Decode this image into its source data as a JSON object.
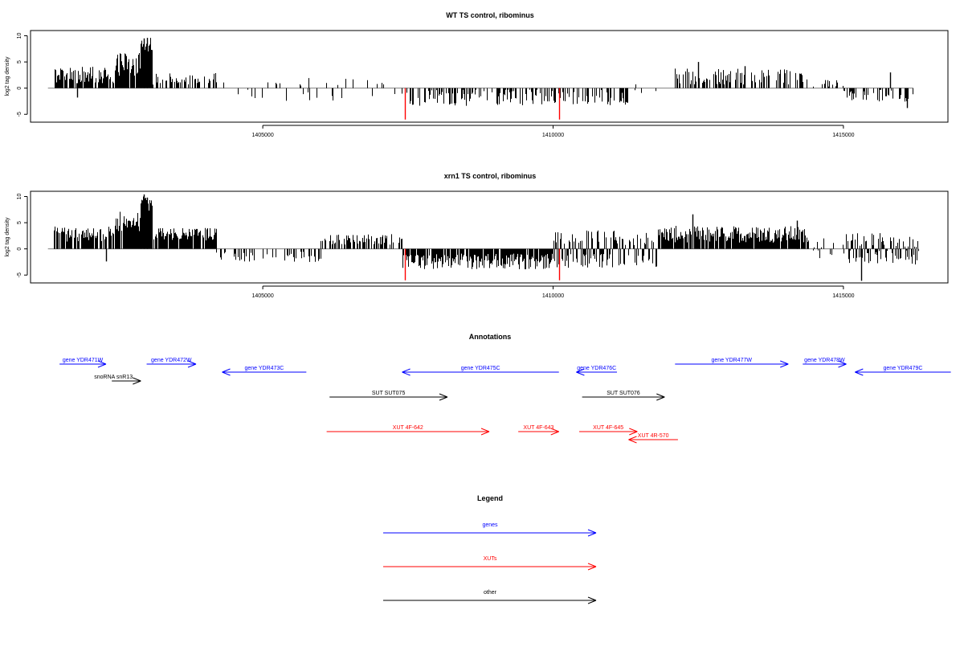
{
  "colors": {
    "gene": "#0000ff",
    "xut": "#ff0000",
    "other": "#000000",
    "highlight": "#ff0000",
    "baseline": "#808080"
  },
  "chart_data": [
    {
      "type": "bar",
      "title": "WT TS control, ribominus",
      "ylabel": "log2 tag density",
      "xlim": [
        1401000,
        1416800
      ],
      "ylim": [
        -6.5,
        11
      ],
      "xticks": [
        1405000,
        1410000,
        1415000
      ],
      "xtick_labels": [
        "1405000",
        "1410000",
        "1415000"
      ],
      "yticks": [
        -5,
        0,
        5,
        10
      ],
      "ytick_labels": [
        "-5",
        "0",
        "5",
        "10"
      ],
      "grid": false,
      "segments": [
        {
          "start": 1401400,
          "end": 1402450,
          "mean": 2.5,
          "amp": 1.6,
          "density": 0.75,
          "sign": "pos"
        },
        {
          "start": 1402450,
          "end": 1402900,
          "mean": 4.5,
          "amp": 2.2,
          "density": 0.9,
          "sign": "pos"
        },
        {
          "start": 1402900,
          "end": 1403100,
          "mean": 8.5,
          "amp": 1.5,
          "density": 1.0,
          "sign": "pos"
        },
        {
          "start": 1403100,
          "end": 1404200,
          "mean": 1.8,
          "amp": 1.2,
          "density": 0.55,
          "sign": "pos"
        },
        {
          "start": 1404200,
          "end": 1406500,
          "mean": 1.2,
          "amp": 1.3,
          "density": 0.12,
          "sign": "mixed"
        },
        {
          "start": 1406500,
          "end": 1407400,
          "mean": 1.0,
          "amp": 0.8,
          "density": 0.15,
          "sign": "mixed"
        },
        {
          "start": 1407400,
          "end": 1409800,
          "mean": -1.8,
          "amp": 1.6,
          "density": 0.5,
          "sign": "neg"
        },
        {
          "start": 1409800,
          "end": 1411300,
          "mean": -1.8,
          "amp": 1.5,
          "density": 0.45,
          "sign": "neg"
        },
        {
          "start": 1411300,
          "end": 1412100,
          "mean": 0.8,
          "amp": 0.8,
          "density": 0.08,
          "sign": "mixed"
        },
        {
          "start": 1412100,
          "end": 1414300,
          "mean": 2.2,
          "amp": 1.6,
          "density": 0.55,
          "sign": "pos"
        },
        {
          "start": 1414300,
          "end": 1415000,
          "mean": 1.0,
          "amp": 0.8,
          "density": 0.25,
          "sign": "pos"
        },
        {
          "start": 1415000,
          "end": 1416200,
          "mean": -1.5,
          "amp": 1.3,
          "density": 0.45,
          "sign": "neg"
        }
      ],
      "spikes": [
        {
          "x": 1407450,
          "y": -6.0,
          "color": "#ff0000"
        },
        {
          "x": 1410100,
          "y": -6.0,
          "color": "#ff0000"
        },
        {
          "x": 1402950,
          "y": 9.5,
          "color": "#000000"
        },
        {
          "x": 1403000,
          "y": 9.6,
          "color": "#000000"
        },
        {
          "x": 1412500,
          "y": 5.0,
          "color": "#000000"
        },
        {
          "x": 1413300,
          "y": 4.2,
          "color": "#000000"
        },
        {
          "x": 1416100,
          "y": -3.8,
          "color": "#000000"
        },
        {
          "x": 1415800,
          "y": 3.0,
          "color": "#000000"
        },
        {
          "x": 1401800,
          "y": -1.8,
          "color": "#000000"
        }
      ]
    },
    {
      "type": "bar",
      "title": "xrn1 TS control, ribominus",
      "ylabel": "log2 tag density",
      "xlim": [
        1401000,
        1416800
      ],
      "ylim": [
        -6.5,
        11
      ],
      "xticks": [
        1405000,
        1410000,
        1415000
      ],
      "xtick_labels": [
        "1405000",
        "1410000",
        "1415000"
      ],
      "yticks": [
        -5,
        0,
        5,
        10
      ],
      "ytick_labels": [
        "-5",
        "0",
        "5",
        "10"
      ],
      "grid": false,
      "segments": [
        {
          "start": 1401400,
          "end": 1402450,
          "mean": 2.8,
          "amp": 1.5,
          "density": 0.75,
          "sign": "pos"
        },
        {
          "start": 1402450,
          "end": 1402900,
          "mean": 5.2,
          "amp": 2.0,
          "density": 0.95,
          "sign": "pos"
        },
        {
          "start": 1402900,
          "end": 1403100,
          "mean": 8.8,
          "amp": 1.5,
          "density": 1.0,
          "sign": "pos"
        },
        {
          "start": 1403100,
          "end": 1404200,
          "mean": 2.8,
          "amp": 1.2,
          "density": 0.9,
          "sign": "pos"
        },
        {
          "start": 1404200,
          "end": 1406000,
          "mean": -1.5,
          "amp": 1.0,
          "density": 0.35,
          "sign": "neg"
        },
        {
          "start": 1406000,
          "end": 1407400,
          "mean": 1.8,
          "amp": 1.0,
          "density": 0.5,
          "sign": "pos"
        },
        {
          "start": 1407400,
          "end": 1410000,
          "mean": -2.4,
          "amp": 1.5,
          "density": 0.9,
          "sign": "neg"
        },
        {
          "start": 1410000,
          "end": 1411800,
          "mean": 2.2,
          "amp": 1.5,
          "density": 0.75,
          "sign": "mixed"
        },
        {
          "start": 1411800,
          "end": 1414400,
          "mean": 2.8,
          "amp": 1.6,
          "density": 0.9,
          "sign": "pos"
        },
        {
          "start": 1414400,
          "end": 1415000,
          "mean": 1.0,
          "amp": 1.0,
          "density": 0.3,
          "sign": "mixed"
        },
        {
          "start": 1415000,
          "end": 1416300,
          "mean": -1.6,
          "amp": 1.4,
          "density": 0.85,
          "sign": "mixed"
        }
      ],
      "spikes": [
        {
          "x": 1407450,
          "y": -6.0,
          "color": "#ff0000"
        },
        {
          "x": 1410100,
          "y": -6.0,
          "color": "#ff0000"
        },
        {
          "x": 1402950,
          "y": 10.4,
          "color": "#000000"
        },
        {
          "x": 1403000,
          "y": 9.8,
          "color": "#000000"
        },
        {
          "x": 1412400,
          "y": 6.6,
          "color": "#000000"
        },
        {
          "x": 1414200,
          "y": 5.4,
          "color": "#000000"
        },
        {
          "x": 1402300,
          "y": -2.4,
          "color": "#000000"
        },
        {
          "x": 1415300,
          "y": -6.1,
          "color": "#000000"
        }
      ]
    },
    {
      "type": "annotation",
      "title": "Annotations",
      "xlim": [
        1401000,
        1416800
      ],
      "features": [
        {
          "label": "gene YDR471W",
          "start": 1401500,
          "end": 1402300,
          "strand": "+",
          "row": 0,
          "category": "gene"
        },
        {
          "label": "gene YDR472W",
          "start": 1403000,
          "end": 1403850,
          "strand": "+",
          "row": 0,
          "category": "gene"
        },
        {
          "label": "gene YDR473C",
          "start": 1404300,
          "end": 1405750,
          "strand": "-",
          "row": 1,
          "category": "gene"
        },
        {
          "label": "gene YDR475C",
          "start": 1407400,
          "end": 1410100,
          "strand": "-",
          "row": 1,
          "category": "gene"
        },
        {
          "label": "gene YDR476C",
          "start": 1410400,
          "end": 1411100,
          "strand": "-",
          "row": 1,
          "category": "gene"
        },
        {
          "label": "gene YDR477W",
          "start": 1412100,
          "end": 1414050,
          "strand": "+",
          "row": 0,
          "category": "gene"
        },
        {
          "label": "gene YDR478W",
          "start": 1414300,
          "end": 1415050,
          "strand": "+",
          "row": 0,
          "category": "gene"
        },
        {
          "label": "gene YDR479C",
          "start": 1415200,
          "end": 1416850,
          "strand": "-",
          "row": 1,
          "category": "gene"
        },
        {
          "label": "snoRNA snR13",
          "start": 1402400,
          "end": 1402900,
          "strand": "+",
          "row": 2,
          "category": "other"
        },
        {
          "label": "SUT SUT075",
          "start": 1406150,
          "end": 1408180,
          "strand": "+",
          "row": 3,
          "category": "other"
        },
        {
          "label": "SUT SUT076",
          "start": 1410500,
          "end": 1411920,
          "strand": "+",
          "row": 3,
          "category": "other"
        },
        {
          "label": "XUT 4F-642",
          "start": 1406100,
          "end": 1408900,
          "strand": "+",
          "row": 4,
          "category": "xut"
        },
        {
          "label": "XUT 4F-643",
          "start": 1409400,
          "end": 1410100,
          "strand": "+",
          "row": 4,
          "category": "xut"
        },
        {
          "label": "XUT 4F-645",
          "start": 1410450,
          "end": 1411450,
          "strand": "+",
          "row": 4,
          "category": "xut"
        },
        {
          "label": "XUT 4R-570",
          "start": 1411300,
          "end": 1412150,
          "strand": "-",
          "row": 5,
          "category": "xut"
        }
      ]
    },
    {
      "type": "legend",
      "title": "Legend",
      "entries": [
        {
          "label": "genes",
          "category": "gene"
        },
        {
          "label": "XUTs",
          "category": "xut"
        },
        {
          "label": "other",
          "category": "other"
        }
      ]
    }
  ]
}
